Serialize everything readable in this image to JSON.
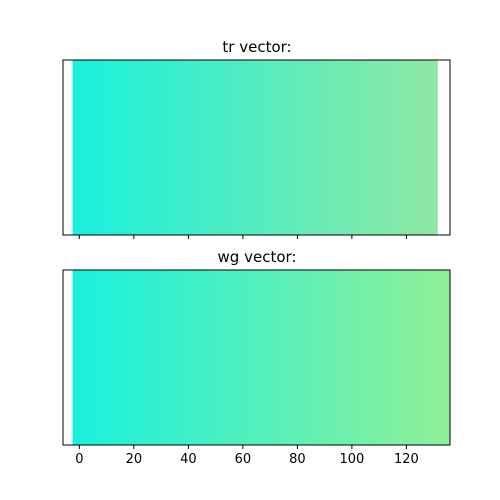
{
  "chart_data": [
    {
      "type": "heatmap",
      "title": "tr vector:",
      "xlabel": "",
      "ylabel": "",
      "x_start": -2.5,
      "x_end": 131.5,
      "xlim": [
        -6,
        136
      ],
      "x_ticks": [
        0,
        20,
        40,
        60,
        80,
        100,
        120
      ],
      "x_tick_labels_visible": false,
      "y_ticks_visible": false,
      "grid": false,
      "color_start": "#18f1dd",
      "color_end": "#90e8a2"
    },
    {
      "type": "heatmap",
      "title": "wg vector:",
      "xlabel": "",
      "ylabel": "",
      "x_start": -2.5,
      "x_end": 136,
      "xlim": [
        -6,
        136
      ],
      "x_ticks": [
        0,
        20,
        40,
        60,
        80,
        100,
        120
      ],
      "x_tick_labels": [
        "0",
        "20",
        "40",
        "60",
        "80",
        "100",
        "120"
      ],
      "x_tick_labels_visible": true,
      "y_ticks_visible": false,
      "grid": false,
      "color_start": "#18f1dd",
      "color_end": "#90f098"
    }
  ]
}
